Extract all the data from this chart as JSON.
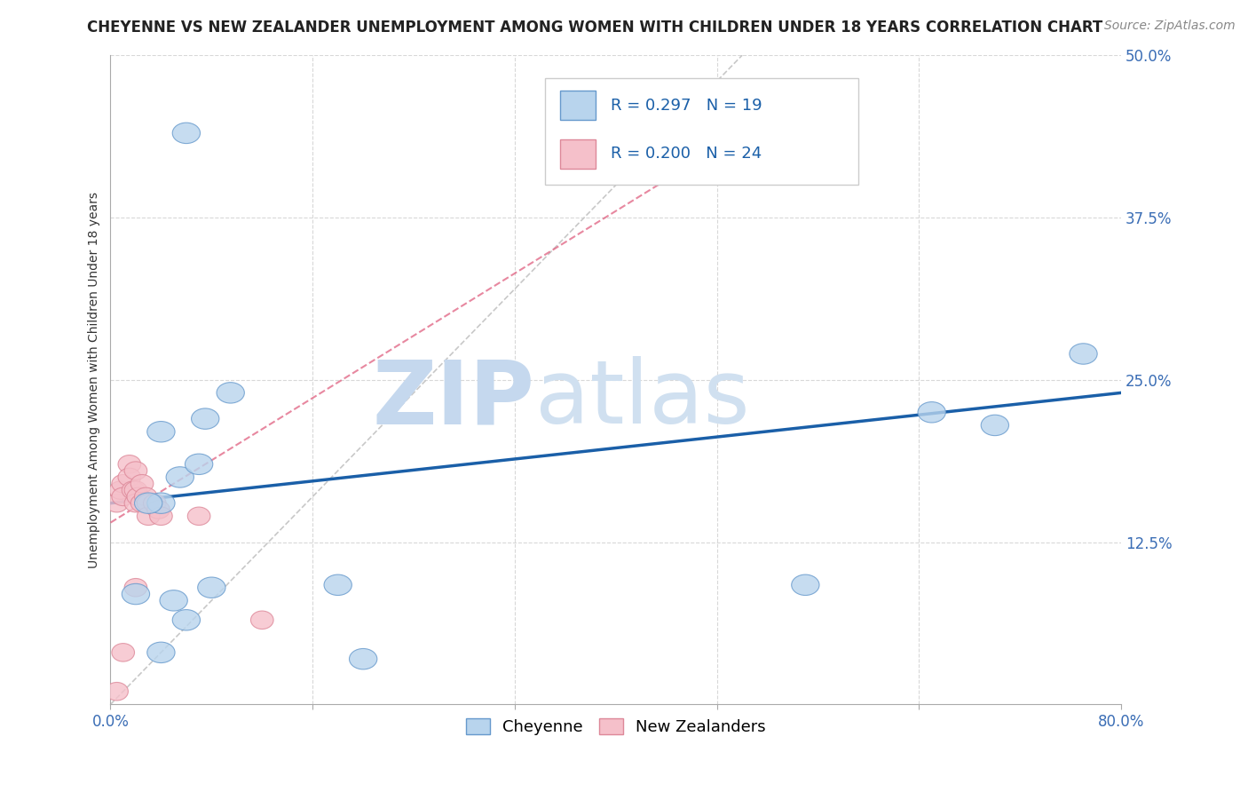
{
  "title": "CHEYENNE VS NEW ZEALANDER UNEMPLOYMENT AMONG WOMEN WITH CHILDREN UNDER 18 YEARS CORRELATION CHART",
  "source": "Source: ZipAtlas.com",
  "ylabel": "Unemployment Among Women with Children Under 18 years",
  "xlim": [
    0.0,
    0.8
  ],
  "ylim": [
    0.0,
    0.5
  ],
  "xticks": [
    0.0,
    0.16,
    0.32,
    0.48,
    0.64,
    0.8
  ],
  "xticklabels": [
    "0.0%",
    "",
    "",
    "",
    "",
    "80.0%"
  ],
  "ytick_positions": [
    0.0,
    0.125,
    0.25,
    0.375,
    0.5
  ],
  "ytick_labels": [
    "",
    "12.5%",
    "25.0%",
    "37.5%",
    "50.0%"
  ],
  "cheyenne_x": [
    0.06,
    0.075,
    0.095,
    0.04,
    0.055,
    0.07,
    0.04,
    0.03,
    0.18,
    0.2,
    0.55,
    0.65,
    0.7,
    0.77,
    0.02,
    0.08,
    0.05,
    0.06,
    0.04
  ],
  "cheyenne_y": [
    0.44,
    0.22,
    0.24,
    0.21,
    0.175,
    0.185,
    0.155,
    0.155,
    0.092,
    0.035,
    0.092,
    0.225,
    0.215,
    0.27,
    0.085,
    0.09,
    0.08,
    0.065,
    0.04
  ],
  "nz_x": [
    0.005,
    0.008,
    0.01,
    0.01,
    0.015,
    0.015,
    0.018,
    0.02,
    0.02,
    0.02,
    0.022,
    0.025,
    0.025,
    0.028,
    0.03,
    0.03,
    0.035,
    0.038,
    0.04,
    0.005,
    0.01,
    0.07,
    0.12,
    0.02
  ],
  "nz_y": [
    0.155,
    0.165,
    0.17,
    0.16,
    0.185,
    0.175,
    0.165,
    0.18,
    0.165,
    0.155,
    0.16,
    0.17,
    0.155,
    0.16,
    0.155,
    0.145,
    0.155,
    0.15,
    0.145,
    0.01,
    0.04,
    0.145,
    0.065,
    0.09
  ],
  "blue_line_x": [
    0.0,
    0.8
  ],
  "blue_line_y": [
    0.155,
    0.24
  ],
  "pink_line_x": [
    0.0,
    0.5
  ],
  "pink_line_y": [
    0.14,
    0.44
  ],
  "cheyenne_color": "#b8d4ed",
  "cheyenne_edge_color": "#6699cc",
  "nz_color": "#f5c0ca",
  "nz_edge_color": "#dd8899",
  "blue_line_color": "#1a5fa8",
  "pink_line_color": "#e06080",
  "diag_line_color": "#c8c8c8",
  "R_cheyenne": "0.297",
  "N_cheyenne": "19",
  "R_nz": "0.200",
  "N_nz": "24",
  "legend_label_cheyenne": "Cheyenne",
  "legend_label_nz": "New Zealanders",
  "watermark_zip": "ZIP",
  "watermark_atlas": "atlas",
  "background_color": "#ffffff",
  "grid_color": "#d8d8d8"
}
